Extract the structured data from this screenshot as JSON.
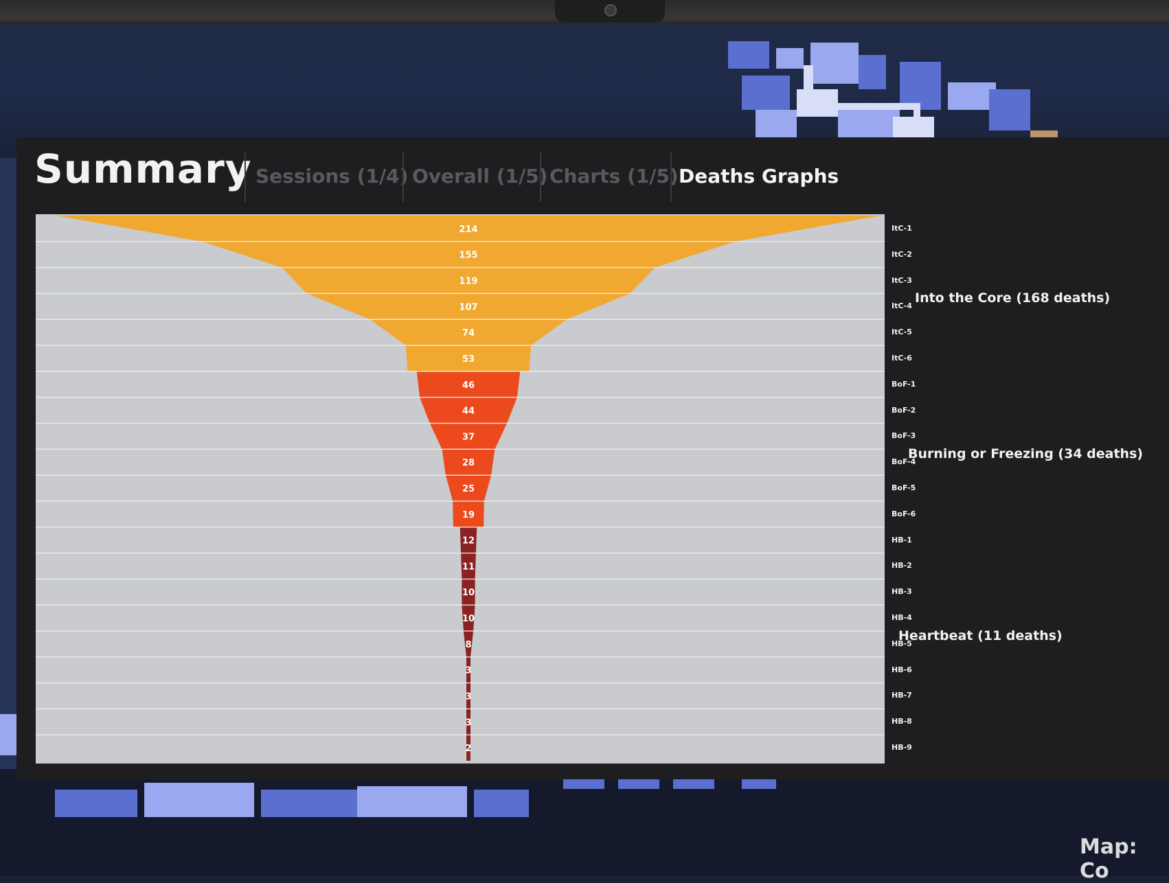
{
  "header": {
    "title": "Summary",
    "tabs": [
      {
        "label": "Sessions (1/4)",
        "active": false
      },
      {
        "label": "Overall (1/5)",
        "active": false
      },
      {
        "label": "Charts (1/5)",
        "active": false
      },
      {
        "label": "Deaths Graphs",
        "active": true
      }
    ]
  },
  "chart_data": {
    "type": "area",
    "shape": "funnel",
    "categories": [
      "ItC-1",
      "ItC-2",
      "ItC-3",
      "ItC-4",
      "ItC-5",
      "ItC-6",
      "BoF-1",
      "BoF-2",
      "BoF-3",
      "BoF-4",
      "BoF-5",
      "BoF-6",
      "HB-1",
      "HB-2",
      "HB-3",
      "HB-4",
      "HB-5",
      "HB-6",
      "HB-7",
      "HB-8",
      "HB-9"
    ],
    "values": [
      214,
      155,
      119,
      107,
      74,
      53,
      46,
      44,
      37,
      28,
      25,
      19,
      12,
      11,
      10,
      10,
      8,
      3,
      3,
      3,
      2
    ],
    "groups": [
      {
        "name": "Into the Core (168 deaths)",
        "start": 0,
        "end": 5,
        "color": "#f0a830"
      },
      {
        "name": "Burning or Freezing (34 deaths)",
        "start": 6,
        "end": 11,
        "color": "#ec4a1c"
      },
      {
        "name": "Heartbeat (11 deaths)",
        "start": 12,
        "end": 20,
        "color": "#8a2222"
      }
    ],
    "background_color": "#c9cbce",
    "grid": true
  },
  "footer": {
    "map_label": "Map: Co"
  }
}
